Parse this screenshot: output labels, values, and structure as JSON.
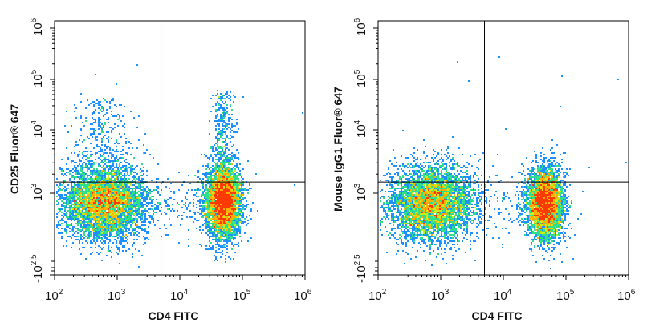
{
  "chart_data": [
    {
      "type": "scatter",
      "subtype": "flow-cytometry density dot plot",
      "title": "",
      "xlabel": "CD4 FITC",
      "ylabel": "CD25 Fluor® 647",
      "x_scale": "log",
      "y_scale": "biexponential",
      "x_ticks": [
        {
          "base": "10",
          "exp": "2",
          "value": 100
        },
        {
          "base": "10",
          "exp": "3",
          "value": 1000
        },
        {
          "base": "10",
          "exp": "4",
          "value": 10000
        },
        {
          "base": "10",
          "exp": "5",
          "value": 100000
        },
        {
          "base": "10",
          "exp": "6",
          "value": 1000000
        }
      ],
      "y_ticks": [
        {
          "base": "-10",
          "exp": "2.5",
          "value": -316
        },
        {
          "base": "10",
          "exp": "3",
          "value": 1000
        },
        {
          "base": "10",
          "exp": "4",
          "value": 10000
        },
        {
          "base": "10",
          "exp": "5",
          "value": 100000
        },
        {
          "base": "10",
          "exp": "6",
          "value": 1000000
        }
      ],
      "xlim": [
        100,
        1000000
      ],
      "ylim": [
        -316,
        1000000
      ],
      "quadrant_gate": {
        "x": 5000,
        "y": 1500
      },
      "populations": [
        {
          "name": "CD4-negative",
          "x_center": 600,
          "y_center": 400,
          "relative_density": 1.0,
          "tail_upward": true
        },
        {
          "name": "CD4-positive",
          "x_center": 48000,
          "y_center": 400,
          "relative_density": 0.9,
          "tail_upward": true,
          "upper_tail_max_y": 60000
        }
      ]
    },
    {
      "type": "scatter",
      "subtype": "flow-cytometry density dot plot",
      "title": "",
      "xlabel": "CD4 FITC",
      "ylabel": "Mouse IgG1 Fluor® 647",
      "x_scale": "log",
      "y_scale": "biexponential",
      "x_ticks": [
        {
          "base": "10",
          "exp": "2",
          "value": 100
        },
        {
          "base": "10",
          "exp": "3",
          "value": 1000
        },
        {
          "base": "10",
          "exp": "4",
          "value": 10000
        },
        {
          "base": "10",
          "exp": "5",
          "value": 100000
        },
        {
          "base": "10",
          "exp": "6",
          "value": 1000000
        }
      ],
      "y_ticks": [
        {
          "base": "-10",
          "exp": "2.5",
          "value": -316
        },
        {
          "base": "10",
          "exp": "3",
          "value": 1000
        },
        {
          "base": "10",
          "exp": "4",
          "value": 10000
        },
        {
          "base": "10",
          "exp": "5",
          "value": 100000
        },
        {
          "base": "10",
          "exp": "6",
          "value": 1000000
        }
      ],
      "xlim": [
        100,
        1000000
      ],
      "ylim": [
        -316,
        1000000
      ],
      "quadrant_gate": {
        "x": 5000,
        "y": 1500
      },
      "populations": [
        {
          "name": "CD4-negative",
          "x_center": 700,
          "y_center": 400,
          "relative_density": 1.0,
          "tail_upward": false
        },
        {
          "name": "CD4-positive",
          "x_center": 45000,
          "y_center": 400,
          "relative_density": 0.9,
          "tail_upward": false
        }
      ]
    }
  ],
  "colormap": [
    "#1c1cd6",
    "#1e90ff",
    "#00d2e6",
    "#2ee08a",
    "#c8ee20",
    "#ffb000",
    "#ff3a00"
  ]
}
